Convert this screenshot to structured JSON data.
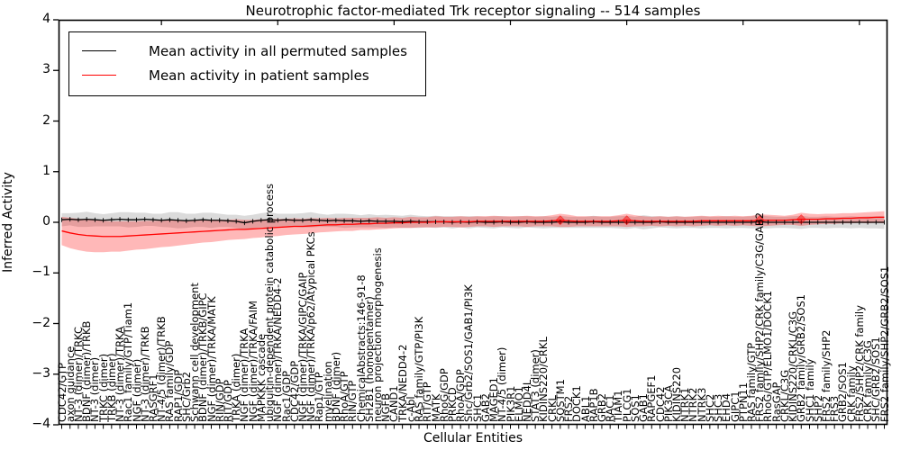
{
  "title": "Neurotrophic factor-mediated Trk receptor signaling -- 514 samples",
  "legend": {
    "items": [
      {
        "label": "Mean activity in all permuted samples",
        "color": "#000000"
      },
      {
        "label": "Mean activity in patient samples",
        "color": "#ff0000"
      }
    ]
  },
  "axes": {
    "ylabel": "Inferred Activity",
    "xlabel": "Cellular Entities",
    "y_ticks": [
      "4",
      "3",
      "2",
      "1",
      "0",
      "−1",
      "−2",
      "−3",
      "−4"
    ],
    "ylim": [
      -4,
      4
    ]
  },
  "colors": {
    "permuted_line": "#000000",
    "patient_line": "#ff0000",
    "permuted_band": "#999999",
    "patient_band": "#ff0000",
    "axis": "#000000"
  },
  "chart_data": {
    "type": "line",
    "title": "Neurotrophic factor-mediated Trk receptor signaling -- 514 samples",
    "xlabel": "Cellular Entities",
    "ylabel": "Inferred Activity",
    "ylim": [
      -4,
      4
    ],
    "grid": false,
    "legend_position": "upper left",
    "categories": [
      "CDC42/GTP",
      "axon guidance",
      "NT-3 (dimer)/TRKC",
      "BDNF (dimer)/TRKB",
      "NT-3 (dimer)",
      "TRKC (dimer)",
      "TRKB (dimer)",
      "NT-3 (dimer)/TRKA",
      "Rac1 family/GTP/Tiam1",
      "NGF (dimer)",
      "NT-3 (dimer)/TRKB",
      "RASGRF1",
      "NT-4/5 (dimer)/TRKB",
      "RAS family/GDP",
      "RAP1/GDP",
      "SHC/Grb2",
      "Schwann cell development",
      "BDNF (dimer)/TRKB/GIPC",
      "NGF (dimer)/TRKA/MATK",
      "RIN/GDP",
      "RIT/GDP",
      "TRKA (dimer)",
      "NGF (dimer)/TRKA",
      "NGF (dimer)/TRKA/FAIM",
      "MAPKKK cascade",
      "ubiquitin-dependent protein catabolic process",
      "NGF (dimer)/TRKA/NEDD4-2",
      "Rac1/GDP",
      "CDC42/GDP",
      "NGF (dimer)/TRKA/GIPC/GAIP",
      "NGF (dimer)/TRKA/p62/Atypical PKCs",
      "Rap1/GTP",
      "myelination",
      "BDNF (dimer)",
      "RhoA/GTP",
      "RIN/GTP",
      "ChemicalAbstracts:146-91-8",
      "SH2B1 (homopentamer)",
      "neuron projection morphogenesis",
      "NGFB",
      "CAND1",
      "TRKA/NEDD4-2",
      "c-Abl",
      "RAS family/GTP/PI3K",
      "RIT/GTP",
      "MATK",
      "RhoG/GDP",
      "PRKCD",
      "RhoA/GDP",
      "Shc/Grb2/SOS1/GAB1/PI3K",
      "SHC1",
      "GAB2",
      "MAGED1",
      "NT-4/5 (dimer)",
      "PIK3R1",
      "ELMO1",
      "NEDD4L",
      "STAT3 (dimer)",
      "KIDINS220/CRKL",
      "CRKL",
      "SQSTM1",
      "FRS2",
      "DOCK1",
      "ABL1",
      "RAP1B",
      "GRB2",
      "RAC1",
      "TIAM1",
      "PLCG1",
      "SOS1",
      "GAB1",
      "RAPGEF1",
      "CDC42",
      "PIK3CA",
      "KIDINS220",
      "NTRK1",
      "NTRK2",
      "NTRK3",
      "SHC2",
      "SHC3",
      "EHD4",
      "GIPC1",
      "PTPN11",
      "RAS family/GTP",
      "FRS2 family/SHP2/CRK family/C3G/GAB2",
      "RhoG/GTP/ELMO1/DOCK1",
      "RasGAP",
      "CRKL/C3G",
      "KIDINS220/CRKL/C3G",
      "GRB2 family/GRB2/SOS1",
      "SHC1 family",
      "SHP2",
      "FRS2 family/SHP2",
      "FRS3",
      "GRB2/SOS1",
      "CRK family",
      "FRS2/SHP2/CRK family",
      "CRK family/C3G",
      "SHC/GRB2/SOS1",
      "FRS2 family/SHP2/GRB2/SOS1"
    ],
    "series": [
      {
        "name": "Mean activity in all permuted samples",
        "color": "#000000",
        "values": [
          0.05,
          0.06,
          0.05,
          0.06,
          0.05,
          0.04,
          0.05,
          0.06,
          0.05,
          0.05,
          0.06,
          0.05,
          0.04,
          0.05,
          0.04,
          0.03,
          0.04,
          0.05,
          0.04,
          0.04,
          0.03,
          0.02,
          -0.01,
          0.02,
          0.04,
          0.05,
          0.04,
          0.05,
          0.04,
          0.04,
          0.05,
          0.04,
          0.03,
          0.04,
          0.03,
          0.03,
          0.02,
          0.03,
          0.02,
          0.02,
          0.02,
          0.01,
          0.02,
          0.01,
          0.01,
          0.01,
          0.01,
          0.0,
          0.01,
          0.0,
          0.01,
          0.0,
          0.0,
          0.01,
          0.0,
          0.0,
          0.01,
          0.0,
          0.0,
          0.0,
          0.01,
          0.0,
          0.0,
          0.0,
          0.01,
          0.0,
          0.0,
          0.0,
          0.0,
          0.0,
          0.0,
          0.0,
          0.01,
          0.0,
          0.0,
          0.0,
          0.0,
          0.0,
          0.0,
          0.0,
          0.0,
          0.0,
          0.0,
          0.0,
          0.01,
          0.0,
          0.0,
          0.0,
          0.0,
          0.0,
          0.0,
          0.0,
          0.0,
          0.0,
          0.0,
          0.0,
          0.0,
          0.0,
          0.0,
          0.0
        ]
      },
      {
        "name": "Mean activity in patient samples",
        "color": "#ff0000",
        "values": [
          -0.17,
          -0.21,
          -0.24,
          -0.26,
          -0.27,
          -0.28,
          -0.28,
          -0.28,
          -0.27,
          -0.26,
          -0.25,
          -0.24,
          -0.23,
          -0.22,
          -0.21,
          -0.2,
          -0.19,
          -0.18,
          -0.17,
          -0.16,
          -0.15,
          -0.14,
          -0.14,
          -0.13,
          -0.12,
          -0.11,
          -0.1,
          -0.09,
          -0.08,
          -0.08,
          -0.07,
          -0.06,
          -0.05,
          -0.05,
          -0.04,
          -0.04,
          -0.03,
          -0.03,
          -0.02,
          -0.02,
          -0.01,
          -0.01,
          0.0,
          0.0,
          0.0,
          0.01,
          0.01,
          0.01,
          0.01,
          0.01,
          0.02,
          0.02,
          0.02,
          0.02,
          0.02,
          0.02,
          0.02,
          0.02,
          0.02,
          0.03,
          0.04,
          0.03,
          0.02,
          0.02,
          0.02,
          0.02,
          0.02,
          0.03,
          0.04,
          0.03,
          0.02,
          0.02,
          0.02,
          0.02,
          0.02,
          0.02,
          0.02,
          0.03,
          0.03,
          0.03,
          0.03,
          0.03,
          0.03,
          0.03,
          0.04,
          0.04,
          0.04,
          0.04,
          0.05,
          0.06,
          0.06,
          0.06,
          0.07,
          0.07,
          0.08,
          0.08,
          0.09,
          0.09,
          0.1,
          0.1
        ]
      }
    ],
    "bands": [
      {
        "series": "Mean activity in all permuted samples",
        "color": "#999999",
        "opacity": 0.35,
        "half_widths": [
          0.13,
          0.12,
          0.14,
          0.15,
          0.13,
          0.12,
          0.13,
          0.14,
          0.15,
          0.14,
          0.13,
          0.12,
          0.13,
          0.15,
          0.16,
          0.14,
          0.13,
          0.14,
          0.15,
          0.13,
          0.12,
          0.13,
          0.14,
          0.13,
          0.14,
          0.15,
          0.13,
          0.12,
          0.13,
          0.14,
          0.15,
          0.13,
          0.12,
          0.13,
          0.14,
          0.13,
          0.12,
          0.13,
          0.12,
          0.13,
          0.12,
          0.12,
          0.13,
          0.12,
          0.11,
          0.12,
          0.11,
          0.12,
          0.11,
          0.12,
          0.11,
          0.11,
          0.12,
          0.11,
          0.11,
          0.12,
          0.11,
          0.11,
          0.12,
          0.11,
          0.12,
          0.11,
          0.11,
          0.11,
          0.12,
          0.11,
          0.11,
          0.12,
          0.13,
          0.11,
          0.14,
          0.12,
          0.11,
          0.11,
          0.12,
          0.11,
          0.11,
          0.12,
          0.11,
          0.11,
          0.12,
          0.11,
          0.11,
          0.12,
          0.13,
          0.12,
          0.11,
          0.11,
          0.12,
          0.13,
          0.11,
          0.11,
          0.12,
          0.11,
          0.11,
          0.12,
          0.11,
          0.12,
          0.12,
          0.13
        ]
      },
      {
        "series": "Mean activity in patient samples",
        "color": "#ff0000",
        "opacity": 0.28,
        "half_widths": [
          0.28,
          0.3,
          0.31,
          0.32,
          0.32,
          0.31,
          0.3,
          0.3,
          0.29,
          0.28,
          0.28,
          0.27,
          0.26,
          0.26,
          0.25,
          0.24,
          0.23,
          0.22,
          0.22,
          0.21,
          0.2,
          0.2,
          0.19,
          0.18,
          0.18,
          0.17,
          0.17,
          0.16,
          0.16,
          0.15,
          0.15,
          0.14,
          0.14,
          0.13,
          0.13,
          0.13,
          0.12,
          0.12,
          0.12,
          0.11,
          0.11,
          0.1,
          0.11,
          0.1,
          0.1,
          0.11,
          0.1,
          0.1,
          0.11,
          0.1,
          0.1,
          0.1,
          0.11,
          0.1,
          0.1,
          0.1,
          0.11,
          0.1,
          0.1,
          0.11,
          0.13,
          0.12,
          0.1,
          0.1,
          0.1,
          0.1,
          0.1,
          0.11,
          0.13,
          0.11,
          0.1,
          0.09,
          0.1,
          0.09,
          0.1,
          0.09,
          0.1,
          0.1,
          0.09,
          0.1,
          0.09,
          0.1,
          0.09,
          0.1,
          0.12,
          0.11,
          0.1,
          0.09,
          0.1,
          0.13,
          0.11,
          0.1,
          0.1,
          0.1,
          0.1,
          0.1,
          0.1,
          0.11,
          0.11,
          0.12
        ]
      }
    ],
    "diamond_marker_indices": [
      60,
      68,
      84,
      89
    ],
    "top_tick_indices": [
      12,
      26,
      40,
      54,
      68,
      82,
      96
    ]
  }
}
